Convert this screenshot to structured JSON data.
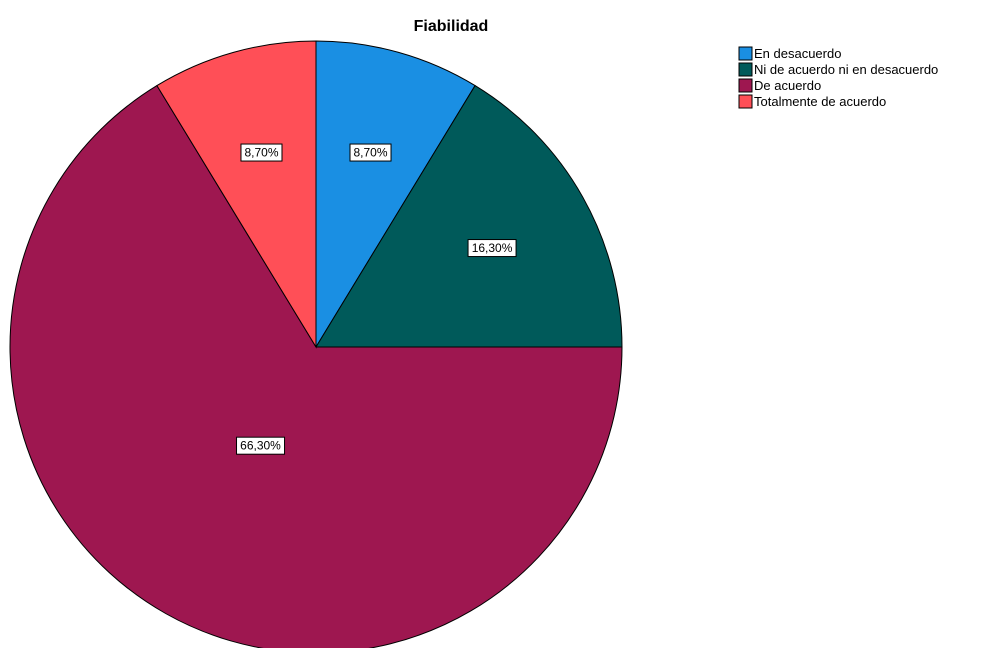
{
  "chart_data": {
    "type": "pie",
    "title": "Fiabilidad",
    "legend_position": "top-right",
    "start_angle_deg": 0,
    "direction": "clockwise",
    "slices": [
      {
        "label": "En desacuerdo",
        "value": 8.7,
        "value_label": "8,70%",
        "color": "#1a8fe3"
      },
      {
        "label": "Ni de acuerdo ni en desacuerdo",
        "value": 16.3,
        "value_label": "16,30%",
        "color": "#005a5a"
      },
      {
        "label": "De acuerdo",
        "value": 66.3,
        "value_label": "66,30%",
        "color": "#9e1750"
      },
      {
        "label": "Totalmente de acuerdo",
        "value": 8.7,
        "value_label": "8,70%",
        "color": "#ff4f57"
      }
    ]
  }
}
